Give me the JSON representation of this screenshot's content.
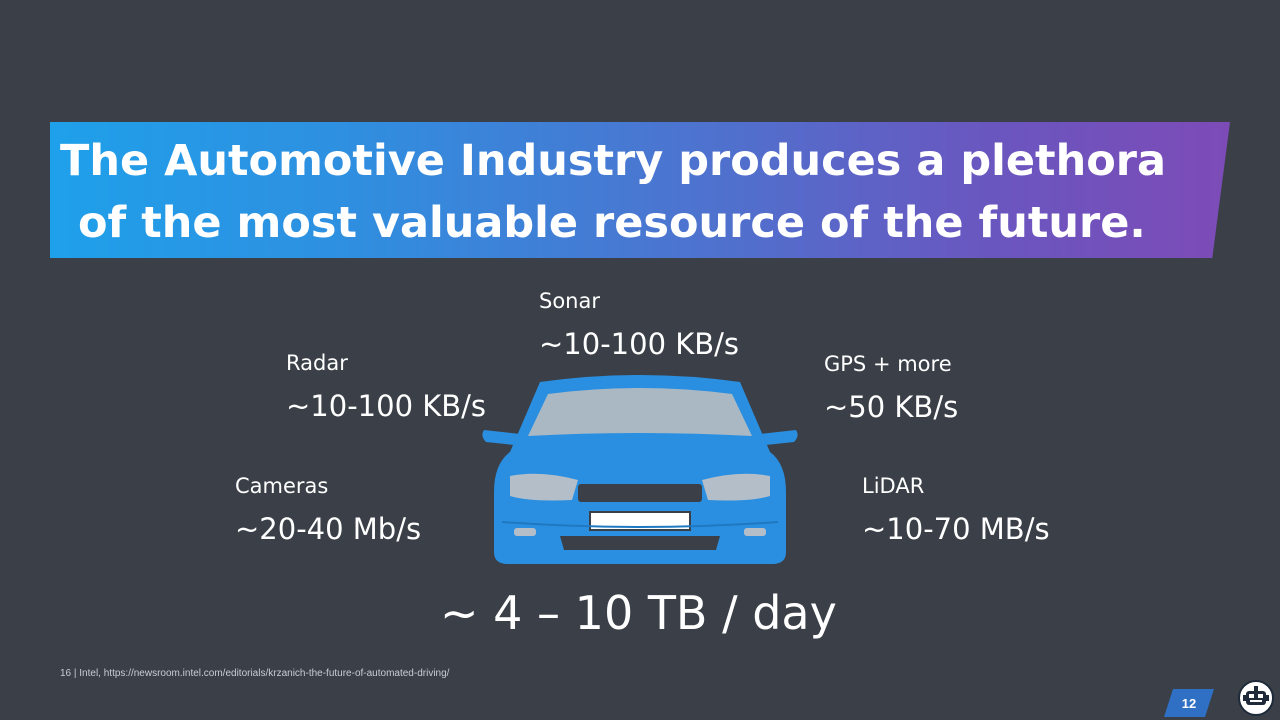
{
  "slide": {
    "title_line1": "The Automotive Industry produces a plethora",
    "title_line2": "of the most valuable resource of the future.",
    "sensors": {
      "sonar": {
        "name": "Sonar",
        "rate": "~10-100 KB/s"
      },
      "radar": {
        "name": "Radar",
        "rate": "~10-100 KB/s"
      },
      "gps": {
        "name": "GPS + more",
        "rate": "~50 KB/s"
      },
      "cameras": {
        "name": "Cameras",
        "rate": "~20-40 Mb/s"
      },
      "lidar": {
        "name": "LiDAR",
        "rate": "~10-70 MB/s"
      }
    },
    "total": "~ 4 – 10 TB / day",
    "footer": "16 | Intel,  https://newsroom.intel.com/editorials/krzanich-the-future-of-automated-driving/",
    "page_number": "12",
    "colors": {
      "background": "#3b4048",
      "banner_start": "#1fa0ea",
      "banner_end": "#7d4bb7",
      "car_body": "#2a8fe0"
    },
    "icons": {
      "car": "car-front-icon",
      "logo": "robot-logo-icon"
    }
  }
}
